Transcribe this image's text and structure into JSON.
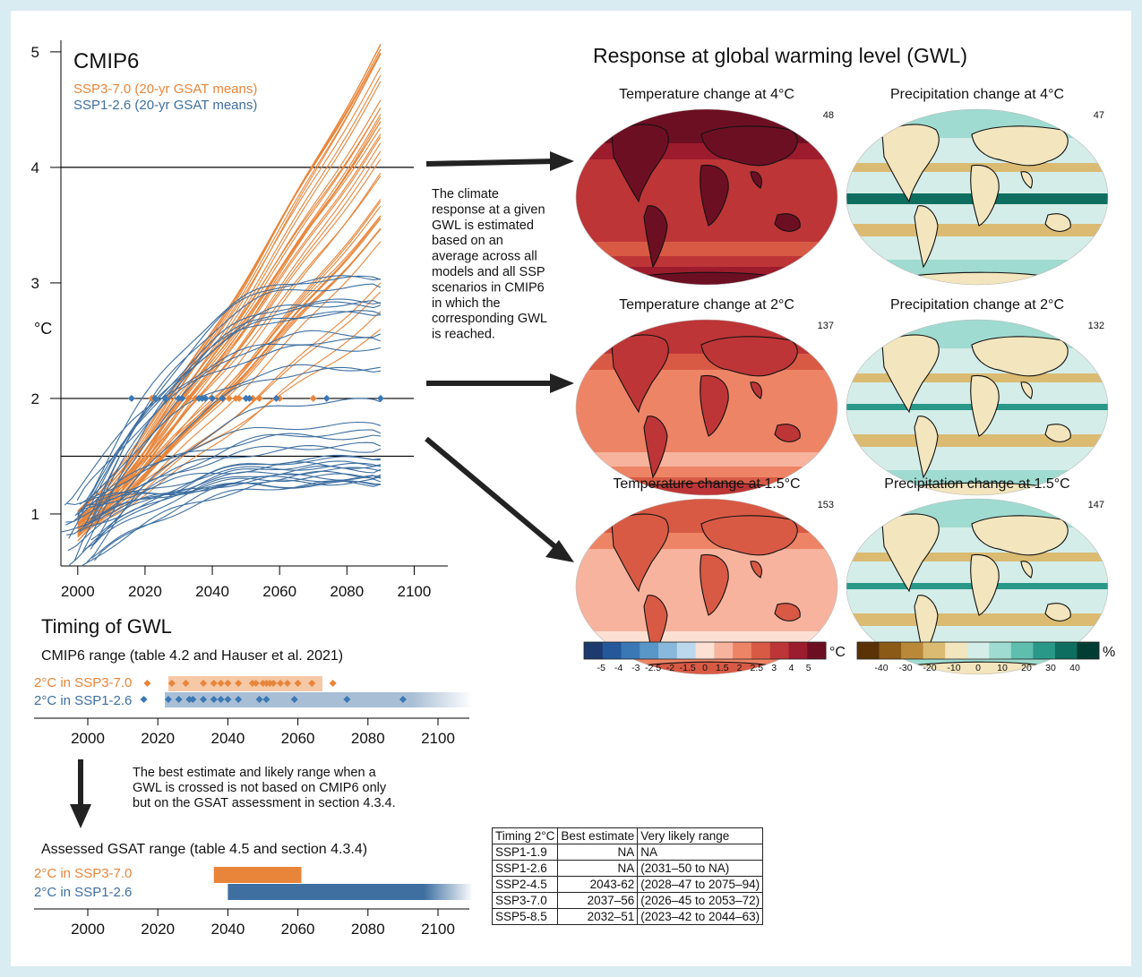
{
  "colors": {
    "ssp370": "#e8853a",
    "ssp126": "#3e6fa0",
    "ssp126_dot": "#3a78b5",
    "background": "#d9ecf2",
    "temp_scale": [
      "#1c3a6e",
      "#24589b",
      "#3a78b5",
      "#5a97c9",
      "#88b8dc",
      "#bcd8ec",
      "#fde0d4",
      "#f7b39e",
      "#ee8466",
      "#d85a45",
      "#bd3536",
      "#9c1b2d",
      "#6d0f23"
    ],
    "precip_scale": [
      "#5a3206",
      "#8b5a17",
      "#b98839",
      "#dbbb72",
      "#f3e5bd",
      "#d4ede8",
      "#9fdbd0",
      "#5fbfaf",
      "#2a9888",
      "#0e6e60",
      "#013d33"
    ]
  },
  "main_chart": {
    "title": "CMIP6",
    "ylabel": "°C",
    "yticks": [
      "1",
      "2",
      "3",
      "4",
      "5"
    ],
    "xticks": [
      "2000",
      "2020",
      "2040",
      "2060",
      "2080",
      "2100"
    ],
    "ref_lines": [
      4,
      2,
      1.5
    ]
  },
  "chart_data": [
    {
      "type": "line",
      "title": "CMIP6",
      "ylabel": "°C",
      "xlim": [
        1995,
        2110
      ],
      "ylim": [
        0.55,
        5.1
      ],
      "series": [
        {
          "name": "SSP3-7.0 (20-yr GSAT means)",
          "color": "#e8853a",
          "x_range": [
            2000,
            2090
          ],
          "y_start_range": [
            0.75,
            1.05
          ],
          "y_end_range": [
            2.6,
            5.1
          ],
          "n_models": 40
        },
        {
          "name": "SSP1-2.6 (20-yr GSAT means)",
          "color": "#3e6fa0",
          "x_range": [
            1995,
            2090
          ],
          "y_start_range": [
            0.55,
            1.15
          ],
          "y_end_range": [
            1.25,
            3.05
          ],
          "n_models": 34
        }
      ],
      "gwl_2C_crossing_years": {
        "SSP3-7.0": [
          2022,
          2031,
          2033,
          2035,
          2037,
          2045,
          2047,
          2048,
          2050,
          2052,
          2054,
          2060,
          2070
        ],
        "SSP1-2.6": [
          2016,
          2023,
          2026,
          2030,
          2031,
          2036,
          2037,
          2038,
          2040,
          2043,
          2050,
          2051,
          2059,
          2074,
          2090
        ]
      }
    },
    {
      "type": "scatter",
      "title": "CMIP6 range (table 4.2 and Hauser et al. 2021)",
      "xlim": [
        1995,
        2110
      ],
      "series": [
        {
          "name": "2°C in SSP3-7.0",
          "range": [
            2023,
            2067
          ],
          "values": [
            2017,
            2024,
            2028,
            2033,
            2036,
            2038,
            2040,
            2043,
            2047,
            2048,
            2050,
            2051,
            2052,
            2053,
            2055,
            2057,
            2060,
            2064,
            2070
          ]
        },
        {
          "name": "2°C in SSP1-2.6",
          "range": [
            2022,
            2100
          ],
          "values": [
            2016,
            2023,
            2026,
            2029,
            2030,
            2033,
            2036,
            2038,
            2040,
            2043,
            2049,
            2051,
            2059,
            2074,
            2090
          ]
        }
      ]
    },
    {
      "type": "bar",
      "title": "Assessed GSAT range (table 4.5 and section 4.3.4)",
      "xlim": [
        1995,
        2110
      ],
      "series": [
        {
          "name": "2°C in SSP3-7.0",
          "range": [
            2036,
            2061
          ]
        },
        {
          "name": "2°C in SSP1-2.6",
          "range": [
            2040,
            2100
          ]
        }
      ]
    }
  ],
  "legend": {
    "ssp370": "SSP3-7.0 (20-yr GSAT means)",
    "ssp126": "SSP1-2.6 (20-yr GSAT means)"
  },
  "maps_title": "Response at global warming level (GWL)",
  "annotation": [
    "The climate",
    "response at a given",
    "GWL is estimated",
    "based on an",
    "average across all",
    "models and all SSP",
    "scenarios in CMIP6",
    "in which the",
    "corresponding GWL",
    "is reached."
  ],
  "maps": [
    {
      "title": "Temperature change at 4°C",
      "count": "48",
      "kind": "temp",
      "level": 4
    },
    {
      "title": "Precipitation change at 4°C",
      "count": "47",
      "kind": "precip",
      "level": 4
    },
    {
      "title": "Temperature change at 2°C",
      "count": "137",
      "kind": "temp",
      "level": 2
    },
    {
      "title": "Precipitation change at 2°C",
      "count": "132",
      "kind": "precip",
      "level": 2
    },
    {
      "title": "Temperature change at 1.5°C",
      "count": "153",
      "kind": "temp",
      "level": 1.5
    },
    {
      "title": "Precipitation change at 1.5°C",
      "count": "147",
      "kind": "precip",
      "level": 1.5
    }
  ],
  "temp_colorbar": {
    "unit": "°C",
    "labels": [
      "-5",
      "-4",
      "-3",
      "-2.5",
      "-2",
      "-1.5",
      "0",
      "1.5",
      "2",
      "2.5",
      "3",
      "4",
      "5"
    ]
  },
  "precip_colorbar": {
    "unit": "%",
    "labels": [
      "-40",
      "-30",
      "-20",
      "-10",
      "0",
      "10",
      "20",
      "30",
      "40"
    ]
  },
  "timing": {
    "title": "Timing of GWL",
    "cmip_range_label": "CMIP6 range (table 4.2 and Hauser et al. 2021)",
    "row1": "2°C in SSP3-7.0",
    "row2": "2°C in SSP1-2.6",
    "xticks": [
      "2000",
      "2020",
      "2040",
      "2060",
      "2080",
      "2100"
    ],
    "note": [
      "The best estimate and likely range when a",
      "GWL is crossed is not based on CMIP6 only",
      "but on the GSAT assessment in section 4.3.4."
    ],
    "assessed_label": "Assessed GSAT range (table 4.5 and section 4.3.4)"
  },
  "table": {
    "headers": [
      "Timing 2°C",
      "Best estimate",
      "Very likely range"
    ],
    "rows": [
      [
        "SSP1-1.9",
        "NA",
        "NA"
      ],
      [
        "SSP1-2.6",
        "NA",
        "(2031–50 to NA)"
      ],
      [
        "SSP2-4.5",
        "2043-62",
        "(2028–47 to 2075–94)"
      ],
      [
        "SSP3-7.0",
        "2037–56",
        "(2026–45 to 2053–72)"
      ],
      [
        "SSP5-8.5",
        "2032–51",
        "(2023–42 to 2044–63)"
      ]
    ]
  }
}
